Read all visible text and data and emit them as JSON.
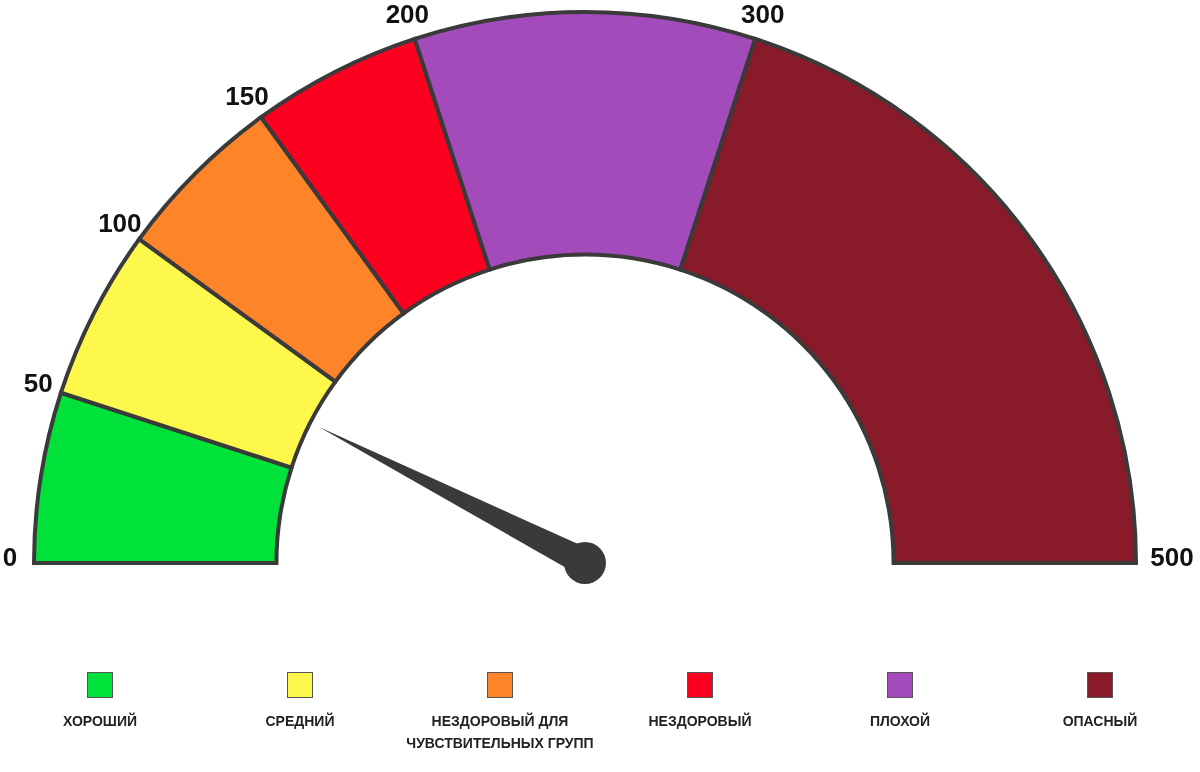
{
  "chart_data": {
    "type": "donut",
    "categories": [
      "ХОРОШИЙ",
      "СРЕДНИЙ",
      "НЕЗДОРОВЫЙ ДЛЯ ЧУВСТВИТЕЛЬНЫХ ГРУПП",
      "НЕЗДОРОВЫЙ",
      "ПЛОХОЙ",
      "ОПАСНЫЙ"
    ],
    "values": [
      10,
      10,
      10,
      10,
      20,
      40
    ],
    "colors": [
      "#00e23a",
      "#fef84c",
      "#fe8429",
      "#fd001f",
      "#a44bbb",
      "#881a29"
    ],
    "annotations": [
      "0",
      "50",
      "100",
      "150",
      "200",
      "300",
      "500"
    ],
    "needle": "СРЕДНИЙ",
    "legend": "bottom"
  }
}
